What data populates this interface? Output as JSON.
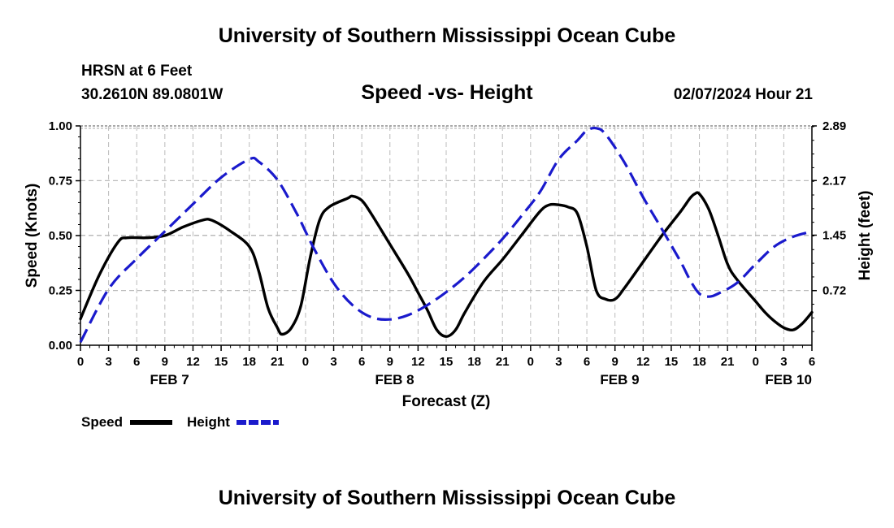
{
  "header": {
    "title": "University of Southern Mississippi Ocean Cube",
    "station": "HRSN at 6 Feet",
    "coords": "30.2610N  89.0801W",
    "subtitle": "Speed -vs- Height",
    "issued": "02/07/2024 Hour 21"
  },
  "footer": {
    "title": "University of Southern Mississippi Ocean Cube"
  },
  "chart_data": {
    "type": "line",
    "title": "Speed -vs- Height",
    "xlabel": "Forecast (Z)",
    "ylabel": "Speed (Knots)",
    "y2label": "Height (feet)",
    "ylim": [
      0,
      1
    ],
    "y2lim": [
      0,
      2.89
    ],
    "xlim": [
      0,
      78
    ],
    "x_unit": "hours from Feb 7 00Z",
    "yticks": [
      "0.00",
      "0.25",
      "0.50",
      "0.75",
      "1.00"
    ],
    "y2ticks": [
      "0.72",
      "1.45",
      "2.17",
      "2.89"
    ],
    "y2tick_values": [
      0.72,
      1.45,
      2.17,
      2.89
    ],
    "xtick_labels": [
      "0",
      "3",
      "6",
      "9",
      "12",
      "15",
      "18",
      "21",
      "0",
      "3",
      "6",
      "9",
      "12",
      "15",
      "18",
      "21",
      "0",
      "3",
      "6",
      "9",
      "12",
      "15",
      "18",
      "21",
      "0",
      "3",
      "6"
    ],
    "date_labels": [
      {
        "label": "FEB 7",
        "hour": 9.5
      },
      {
        "label": "FEB 8",
        "hour": 33.5
      },
      {
        "label": "FEB 9",
        "hour": 57.5
      },
      {
        "label": "FEB 10",
        "hour": 75.5
      }
    ],
    "legend": [
      {
        "name": "Speed",
        "color": "#000000",
        "style": "solid"
      },
      {
        "name": "Height",
        "color": "#1a1acc",
        "style": "dashed"
      }
    ],
    "series": [
      {
        "name": "Speed",
        "axis": "left",
        "color": "#000000",
        "points": [
          [
            0,
            0.12
          ],
          [
            2,
            0.32
          ],
          [
            4,
            0.47
          ],
          [
            5,
            0.49
          ],
          [
            7,
            0.49
          ],
          [
            9,
            0.5
          ],
          [
            11,
            0.54
          ],
          [
            13,
            0.57
          ],
          [
            14,
            0.57
          ],
          [
            16,
            0.52
          ],
          [
            18,
            0.45
          ],
          [
            19,
            0.34
          ],
          [
            20,
            0.17
          ],
          [
            21,
            0.08
          ],
          [
            21.5,
            0.05
          ],
          [
            22.5,
            0.08
          ],
          [
            23.5,
            0.18
          ],
          [
            24.5,
            0.4
          ],
          [
            25.5,
            0.57
          ],
          [
            26.5,
            0.63
          ],
          [
            28.5,
            0.67
          ],
          [
            29,
            0.68
          ],
          [
            30,
            0.66
          ],
          [
            31,
            0.6
          ],
          [
            33,
            0.46
          ],
          [
            35,
            0.32
          ],
          [
            36,
            0.24
          ],
          [
            37,
            0.16
          ],
          [
            38,
            0.07
          ],
          [
            39,
            0.04
          ],
          [
            40,
            0.07
          ],
          [
            41,
            0.15
          ],
          [
            43,
            0.29
          ],
          [
            45,
            0.39
          ],
          [
            47,
            0.5
          ],
          [
            49,
            0.61
          ],
          [
            50,
            0.64
          ],
          [
            51,
            0.64
          ],
          [
            52,
            0.63
          ],
          [
            53,
            0.6
          ],
          [
            54,
            0.45
          ],
          [
            55,
            0.25
          ],
          [
            56,
            0.21
          ],
          [
            57,
            0.21
          ],
          [
            58,
            0.26
          ],
          [
            60,
            0.38
          ],
          [
            62,
            0.5
          ],
          [
            64,
            0.61
          ],
          [
            65,
            0.67
          ],
          [
            65.5,
            0.69
          ],
          [
            66,
            0.69
          ],
          [
            67,
            0.62
          ],
          [
            68,
            0.5
          ],
          [
            69,
            0.37
          ],
          [
            70,
            0.3
          ],
          [
            72,
            0.2
          ],
          [
            73,
            0.15
          ],
          [
            74,
            0.11
          ],
          [
            75,
            0.08
          ],
          [
            76,
            0.07
          ],
          [
            77,
            0.1
          ],
          [
            78,
            0.15
          ]
        ]
      },
      {
        "name": "Height",
        "axis": "right",
        "color": "#1a1acc",
        "points": [
          [
            0,
            0.04
          ],
          [
            3,
            0.74
          ],
          [
            6,
            1.14
          ],
          [
            9,
            1.5
          ],
          [
            12,
            1.86
          ],
          [
            15,
            2.21
          ],
          [
            18,
            2.45
          ],
          [
            19,
            2.42
          ],
          [
            21,
            2.18
          ],
          [
            23,
            1.75
          ],
          [
            24,
            1.5
          ],
          [
            25,
            1.25
          ],
          [
            27,
            0.82
          ],
          [
            29,
            0.53
          ],
          [
            31,
            0.37
          ],
          [
            33,
            0.34
          ],
          [
            35,
            0.4
          ],
          [
            37,
            0.53
          ],
          [
            39,
            0.7
          ],
          [
            41,
            0.9
          ],
          [
            43,
            1.14
          ],
          [
            45,
            1.4
          ],
          [
            47,
            1.7
          ],
          [
            49,
            2.02
          ],
          [
            51,
            2.45
          ],
          [
            53,
            2.7
          ],
          [
            54,
            2.83
          ],
          [
            55,
            2.86
          ],
          [
            56,
            2.78
          ],
          [
            58,
            2.41
          ],
          [
            60,
            1.95
          ],
          [
            62,
            1.53
          ],
          [
            64,
            1.1
          ],
          [
            65,
            0.86
          ],
          [
            66,
            0.68
          ],
          [
            67,
            0.64
          ],
          [
            68,
            0.68
          ],
          [
            70,
            0.82
          ],
          [
            72,
            1.07
          ],
          [
            74,
            1.3
          ],
          [
            76,
            1.43
          ],
          [
            78,
            1.5
          ]
        ]
      }
    ]
  }
}
